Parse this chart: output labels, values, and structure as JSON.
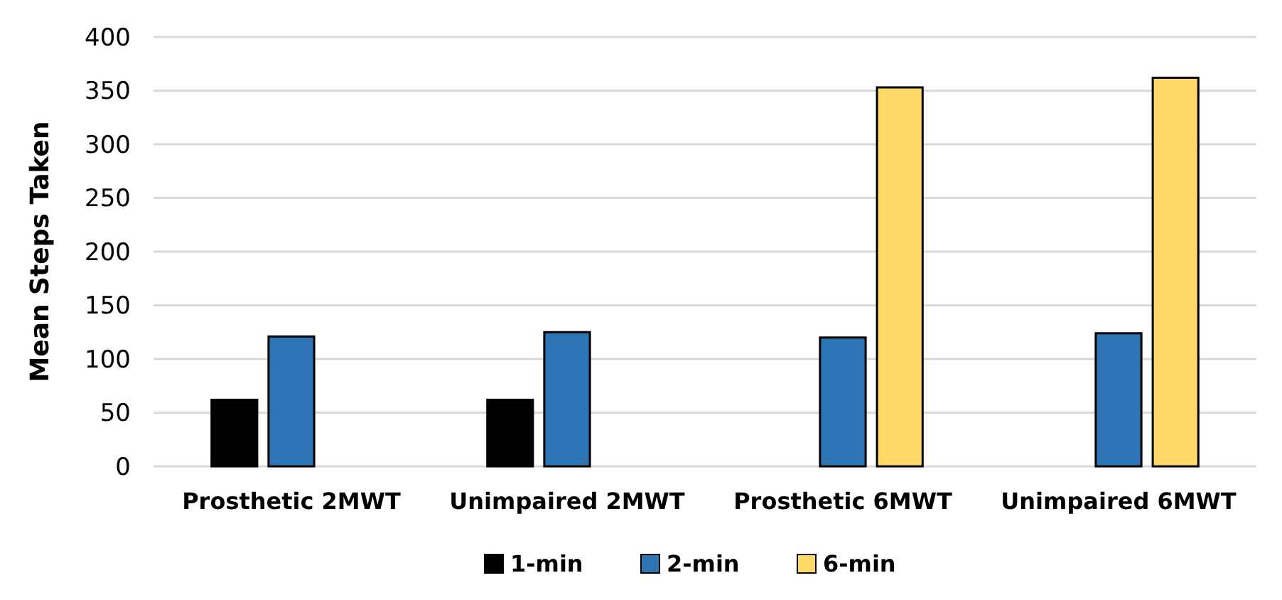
{
  "chart_data": {
    "type": "bar",
    "ylabel": "Mean Steps Taken",
    "categories": [
      "Prosthetic 2MWT",
      "Unimpaired 2MWT",
      "Prosthetic 6MWT",
      "Unimpaired 6MWT"
    ],
    "series": [
      {
        "name": "1-min",
        "color": "#000000",
        "values": [
          62,
          62,
          null,
          null
        ]
      },
      {
        "name": "2-min",
        "color": "#2e75b6",
        "values": [
          121,
          125,
          120,
          124
        ]
      },
      {
        "name": "6-min",
        "color": "#ffd966",
        "values": [
          null,
          null,
          353,
          362
        ]
      }
    ],
    "ylim": [
      0,
      400
    ],
    "yticks": [
      0,
      50,
      100,
      150,
      200,
      250,
      300,
      350,
      400
    ],
    "grid": "y",
    "legend": "bottom"
  }
}
